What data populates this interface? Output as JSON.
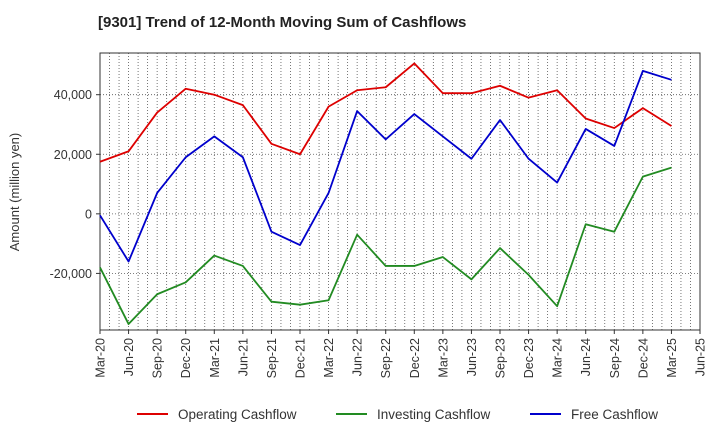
{
  "chart_data": {
    "type": "line",
    "title": "[9301]  Trend of 12-Month Moving Sum of Cashflows",
    "ylabel": "Amount (million yen)",
    "xlabel": "",
    "ylim": [
      -39000,
      54000
    ],
    "y_ticks": [
      -20000,
      0,
      20000,
      40000
    ],
    "y_tick_labels": [
      "-20,000",
      "0",
      "20,000",
      "40,000"
    ],
    "x_tick_labels": [
      "Mar-20",
      "Jun-20",
      "Sep-20",
      "Dec-20",
      "Mar-21",
      "Jun-21",
      "Sep-21",
      "Dec-21",
      "Mar-22",
      "Jun-22",
      "Sep-22",
      "Dec-22",
      "Mar-23",
      "Jun-23",
      "Sep-23",
      "Dec-23",
      "Mar-24",
      "Jun-24",
      "Sep-24",
      "Dec-24",
      "Mar-25",
      "Jun-25"
    ],
    "categories": [
      "Mar-20",
      "Jun-20",
      "Sep-20",
      "Dec-20",
      "Mar-21",
      "Jun-21",
      "Sep-21",
      "Dec-21",
      "Mar-22",
      "Jun-22",
      "Sep-22",
      "Dec-22",
      "Mar-23",
      "Jun-23",
      "Sep-23",
      "Dec-23",
      "Mar-24",
      "Jun-24",
      "Sep-24",
      "Dec-24",
      "Mar-25"
    ],
    "grid": true,
    "legend_position": "bottom",
    "series": [
      {
        "name": "Operating Cashflow",
        "color": "#dd0000",
        "values": [
          17500,
          21000,
          34000,
          42000,
          40000,
          36500,
          23500,
          20000,
          36000,
          41500,
          42500,
          50500,
          40500,
          40500,
          43000,
          39000,
          41500,
          32000,
          28800,
          35500,
          29500
        ]
      },
      {
        "name": "Investing Cashflow",
        "color": "#228b22",
        "values": [
          -18000,
          -37000,
          -27000,
          -23000,
          -14000,
          -17500,
          -29500,
          -30500,
          -29000,
          -7000,
          -17500,
          -17500,
          -14500,
          -22000,
          -11500,
          -20500,
          -31000,
          -3500,
          -6000,
          12500,
          15500
        ]
      },
      {
        "name": "Free Cashflow",
        "color": "#0000cc",
        "values": [
          -500,
          -16000,
          7000,
          19000,
          26000,
          19000,
          -6000,
          -10500,
          7000,
          34500,
          25000,
          33500,
          26000,
          18500,
          31500,
          18500,
          10500,
          28500,
          22800,
          48000,
          45000
        ]
      }
    ]
  }
}
